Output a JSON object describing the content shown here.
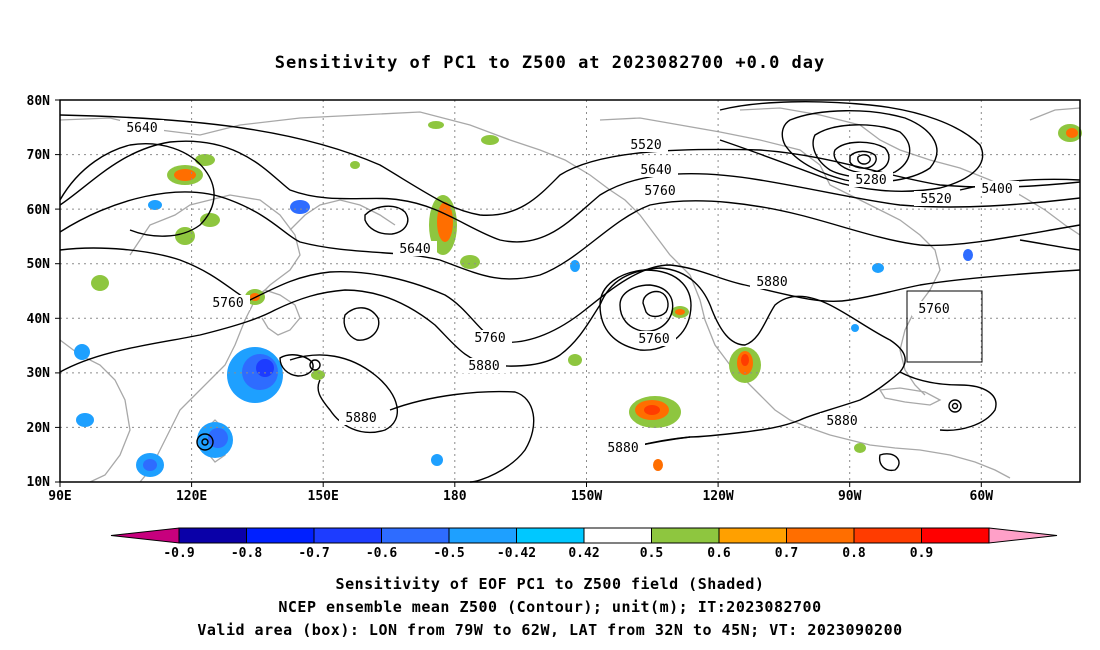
{
  "title": "Sensitivity of PC1 to Z500 at 2023082700 +0.0 day",
  "lat_labels": [
    "80N",
    "70N",
    "60N",
    "50N",
    "40N",
    "30N",
    "20N",
    "10N"
  ],
  "lon_labels": [
    "90E",
    "120E",
    "150E",
    "180",
    "150W",
    "120W",
    "90W",
    "60W"
  ],
  "contour_labels": [
    "5640",
    "5520",
    "5640",
    "5760",
    "5280",
    "5400",
    "5520",
    "5640",
    "5760",
    "5760",
    "5880",
    "5760",
    "5880",
    "5880",
    "5880",
    "5880",
    "5760"
  ],
  "colorbar": {
    "ticks": [
      "-0.9",
      "-0.8",
      "-0.7",
      "-0.6",
      "-0.5",
      "-0.42",
      "0.42",
      "0.5",
      "0.6",
      "0.7",
      "0.8",
      "0.9"
    ],
    "colors": [
      "#c7007d",
      "#0a00a8",
      "#0020ff",
      "#1d3cff",
      "#2e6cff",
      "#1ea0ff",
      "#00c8ff",
      "#ffffff",
      "#8ec63f",
      "#ffa000",
      "#ff6e00",
      "#ff3c00",
      "#ff0000",
      "#ffa0c8"
    ]
  },
  "footer": {
    "line1": "Sensitivity of EOF PC1 to Z500 field (Shaded)",
    "line2": "NCEP ensemble mean Z500 (Contour); unit(m); IT:2023082700",
    "line3": "Valid area (box): LON from 79W to 62W, LAT from 32N to 45N; VT: 2023090200"
  },
  "colors": {
    "contour": "#000000",
    "coast": "#a8a8a8",
    "grid": "#8c8c8c"
  }
}
